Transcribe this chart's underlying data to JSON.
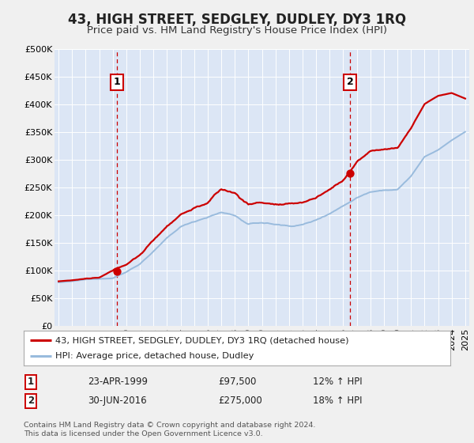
{
  "title": "43, HIGH STREET, SEDGLEY, DUDLEY, DY3 1RQ",
  "subtitle": "Price paid vs. HM Land Registry's House Price Index (HPI)",
  "footer": "Contains HM Land Registry data © Crown copyright and database right 2024.\nThis data is licensed under the Open Government Licence v3.0.",
  "legend_line1": "43, HIGH STREET, SEDGLEY, DUDLEY, DY3 1RQ (detached house)",
  "legend_line2": "HPI: Average price, detached house, Dudley",
  "annotation1_date": "23-APR-1999",
  "annotation1_price": "£97,500",
  "annotation1_hpi": "12% ↑ HPI",
  "annotation2_date": "30-JUN-2016",
  "annotation2_price": "£275,000",
  "annotation2_hpi": "18% ↑ HPI",
  "sale1_year": 1999.3,
  "sale1_price": 97500,
  "sale2_year": 2016.5,
  "sale2_price": 275000,
  "ylim": [
    0,
    500000
  ],
  "xlim_start": 1994.7,
  "xlim_end": 2025.3,
  "bg_color": "#f0f0f0",
  "plot_bg_color": "#dce6f5",
  "line_color_property": "#cc0000",
  "line_color_hpi": "#99bbdd",
  "grid_color": "#ffffff",
  "vline_color": "#cc0000",
  "marker_color_property": "#cc0000",
  "annotation_box_color": "#cc0000",
  "title_fontsize": 12,
  "subtitle_fontsize": 9.5,
  "tick_fontsize": 8,
  "hpi_base_years": [
    1995,
    1996,
    1997,
    1998,
    1999,
    2000,
    2001,
    2002,
    2003,
    2004,
    2005,
    2006,
    2007,
    2008,
    2009,
    2010,
    2011,
    2012,
    2013,
    2014,
    2015,
    2016,
    2017,
    2018,
    2019,
    2020,
    2021,
    2022,
    2023,
    2024,
    2025
  ],
  "hpi_base_vals": [
    78000,
    80000,
    83000,
    84000,
    86000,
    97000,
    112000,
    135000,
    158000,
    178000,
    188000,
    197000,
    205000,
    200000,
    183000,
    186000,
    183000,
    180000,
    183000,
    191000,
    204000,
    218000,
    233000,
    244000,
    248000,
    248000,
    272000,
    306000,
    318000,
    335000,
    350000
  ],
  "prop_base_years": [
    1995,
    1996,
    1997,
    1998,
    1999,
    2000,
    2001,
    2002,
    2003,
    2004,
    2005,
    2006,
    2007,
    2008,
    2009,
    2010,
    2011,
    2012,
    2013,
    2014,
    2015,
    2016,
    2017,
    2018,
    2019,
    2020,
    2021,
    2022,
    2023,
    2024,
    2025
  ],
  "prop_base_vals": [
    80000,
    82000,
    85000,
    86000,
    97500,
    109000,
    126000,
    152000,
    178000,
    200000,
    212000,
    222000,
    245000,
    238000,
    218000,
    222000,
    219000,
    216000,
    220000,
    229000,
    244000,
    261000,
    295000,
    313000,
    318000,
    320000,
    356000,
    400000,
    415000,
    420000,
    410000
  ]
}
